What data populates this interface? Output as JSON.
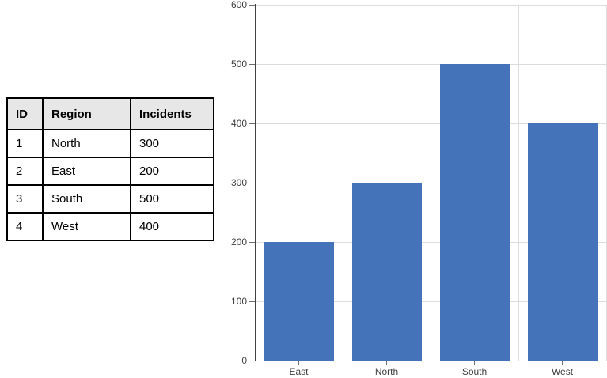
{
  "page": {
    "background": "#ffffff"
  },
  "table": {
    "columns": [
      "ID",
      "Region",
      "Incidents"
    ],
    "rows": [
      [
        "1",
        "North",
        "300"
      ],
      [
        "2",
        "East",
        "200"
      ],
      [
        "3",
        "South",
        "500"
      ],
      [
        "4",
        "West",
        "400"
      ]
    ],
    "header_bg": "#E7E7E7",
    "border_color": "#000000"
  },
  "chart_data": {
    "type": "bar",
    "categories": [
      "East",
      "North",
      "South",
      "West"
    ],
    "values": [
      200,
      300,
      500,
      400
    ],
    "title": "",
    "xlabel": "",
    "ylabel": "",
    "ylim": [
      0,
      600
    ],
    "yticks": [
      0,
      100,
      200,
      300,
      400,
      500,
      600
    ],
    "grid": true,
    "legend": false,
    "bar_color": "#4473B9",
    "gridline_color": "#DCDCDC",
    "axis_color": "#404040",
    "tick_color": "#6E6E6E",
    "label_color": "#3F3F3F"
  }
}
